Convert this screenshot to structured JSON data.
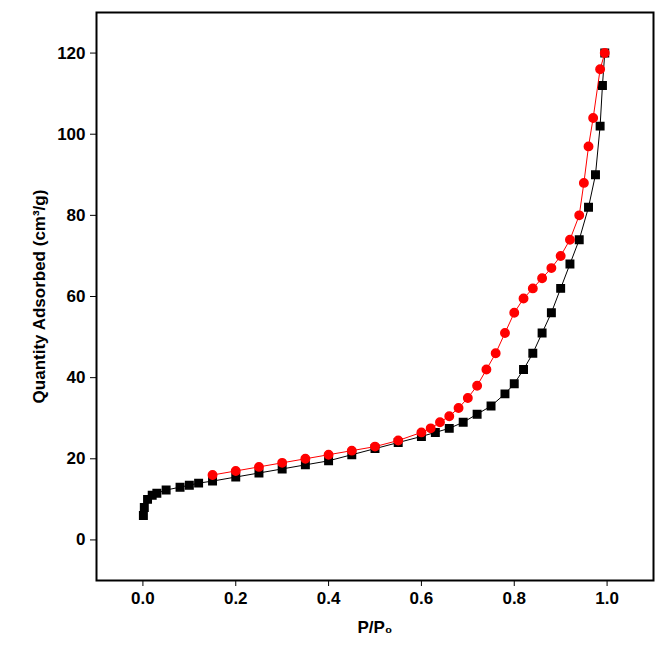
{
  "chart_data": {
    "type": "scatter",
    "x_label": "P/P₀",
    "y_label": "Quantity Adsorbed (cm³/g)",
    "xlim": [
      -0.1,
      1.1
    ],
    "ylim": [
      -10,
      130
    ],
    "xticks": [
      {
        "value": 0,
        "label": "0.0"
      },
      0.2,
      0.4,
      0.6,
      0.8,
      {
        "value": 1,
        "label": "1.0"
      }
    ],
    "yticks": [
      0,
      20,
      40,
      60,
      80,
      100,
      120
    ],
    "grid": false,
    "series": [
      {
        "color": "#000000",
        "marker": "square",
        "line_style": "solid",
        "x": [
          0.001,
          0.003,
          0.01,
          0.02,
          0.03,
          0.05,
          0.08,
          0.1,
          0.12,
          0.15,
          0.2,
          0.25,
          0.3,
          0.35,
          0.4,
          0.45,
          0.5,
          0.55,
          0.6,
          0.63,
          0.66,
          0.69,
          0.72,
          0.75,
          0.78,
          0.8,
          0.82,
          0.84,
          0.86,
          0.88,
          0.9,
          0.92,
          0.94,
          0.96,
          0.975,
          0.985,
          0.99,
          0.995
        ],
        "values": [
          6,
          8,
          10,
          11,
          11.5,
          12.3,
          13,
          13.5,
          14,
          14.5,
          15.5,
          16.5,
          17.5,
          18.5,
          19.5,
          21,
          22.5,
          24,
          25.5,
          26.5,
          27.5,
          29,
          31,
          33,
          36,
          38.5,
          42,
          46,
          51,
          56,
          62,
          68,
          74,
          82,
          90,
          102,
          112,
          120
        ]
      },
      {
        "color": "#ff0000",
        "marker": "circle",
        "line_style": "solid",
        "x": [
          0.995,
          0.985,
          0.97,
          0.96,
          0.95,
          0.94,
          0.92,
          0.9,
          0.88,
          0.86,
          0.84,
          0.82,
          0.8,
          0.78,
          0.76,
          0.74,
          0.72,
          0.7,
          0.68,
          0.66,
          0.64,
          0.62,
          0.6,
          0.55,
          0.5,
          0.45,
          0.4,
          0.35,
          0.3,
          0.25,
          0.2,
          0.15
        ],
        "values": [
          120,
          116,
          104,
          97,
          88,
          80,
          74,
          70,
          67,
          64.5,
          62,
          59.5,
          56,
          51,
          46,
          42,
          38,
          35,
          32.5,
          30.5,
          29,
          27.5,
          26.5,
          24.5,
          23,
          22,
          21,
          20,
          19,
          18,
          17,
          16
        ]
      }
    ]
  }
}
